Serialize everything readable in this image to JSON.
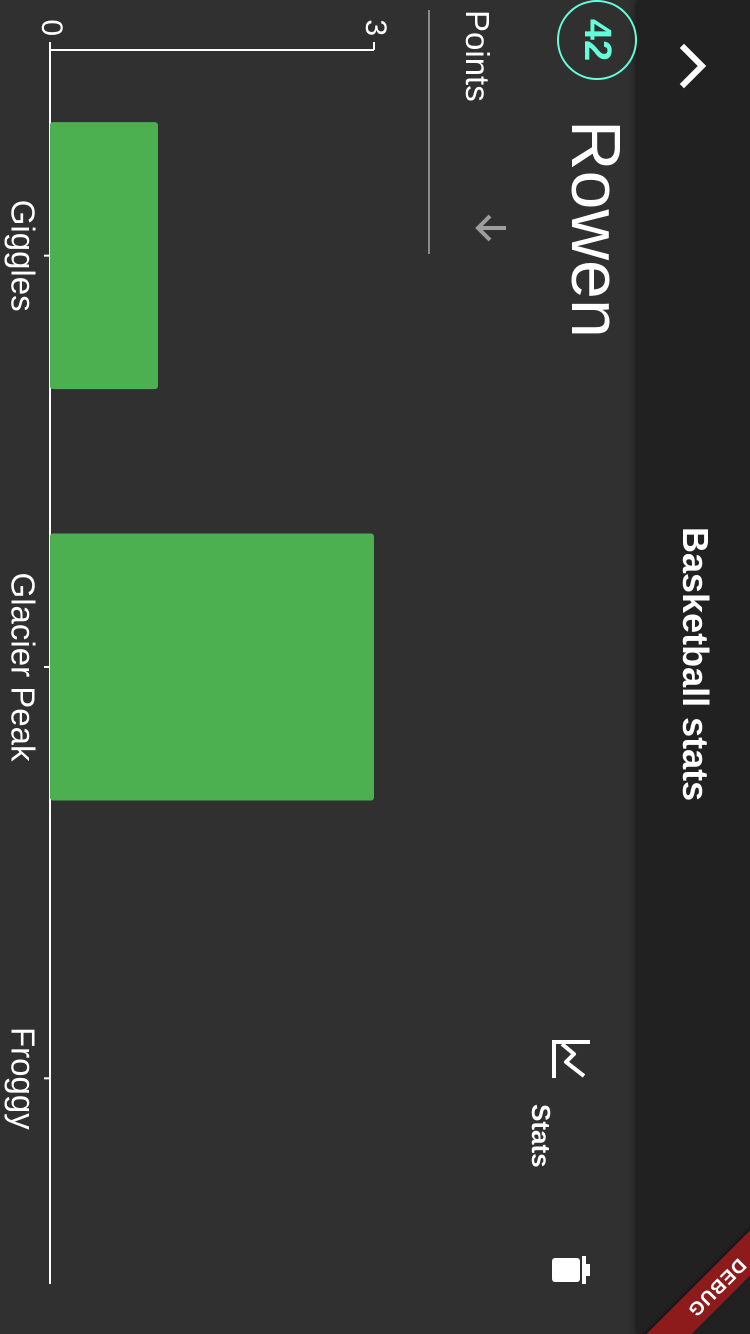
{
  "appbar": {
    "title": "Basketball stats",
    "back_icon": "chevron-up-icon"
  },
  "player": {
    "number": "42",
    "name": "Rowen"
  },
  "tabs": {
    "stats_label": "Stats",
    "stats_icon": "show-chart-icon",
    "delete_icon": "trash-icon"
  },
  "metric": {
    "selected": "Points",
    "arrow_icon": "arrow-icon"
  },
  "debug": {
    "label": "DEBUG"
  },
  "colors": {
    "bar": "#4caf50",
    "accent": "#64ffda",
    "background": "#303030",
    "appbar": "#212121",
    "debug": "#8e1b1b"
  },
  "chart_data": {
    "type": "bar",
    "orientation": "horizontal",
    "categories": [
      "Giggles",
      "Glacier Peak",
      "Froggy"
    ],
    "values": [
      1,
      3,
      0
    ],
    "ticks": [
      0,
      3
    ],
    "xlim": [
      0,
      3
    ]
  }
}
